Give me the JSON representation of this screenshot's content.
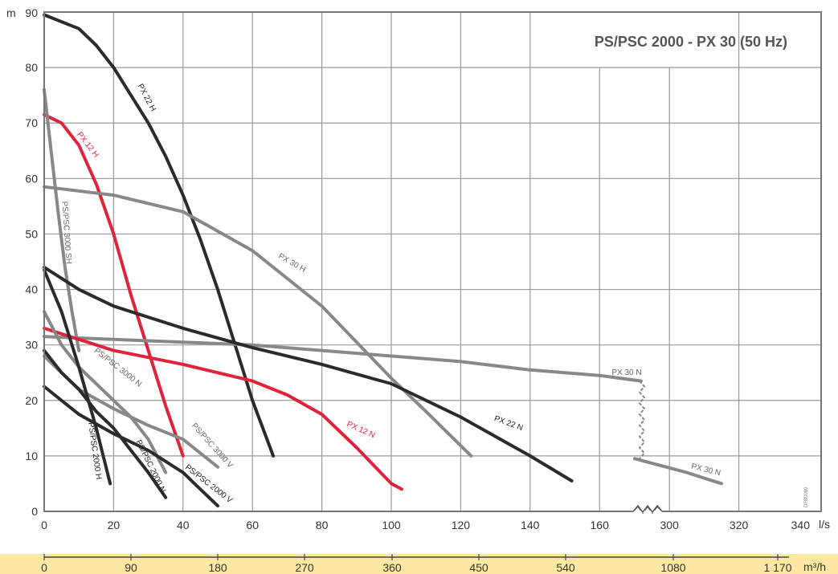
{
  "chart_data": {
    "type": "line",
    "title": "PS/PSC 2000 - PX 30 (50 Hz)",
    "ylabel": "m",
    "xlabel": "l/s",
    "secondary_xlabel": "m³/h",
    "ylim": [
      0,
      90
    ],
    "y_ticks": [
      "0",
      "10",
      "20",
      "30",
      "40",
      "50",
      "60",
      "70",
      "80",
      "90"
    ],
    "x_ticks": [
      "0",
      "20",
      "40",
      "60",
      "80",
      "100",
      "120",
      "140",
      "160",
      "300",
      "320",
      "340"
    ],
    "x_axis_break": "between 160 and 300 l/s",
    "secondary_ticks": [
      "0",
      "90",
      "180",
      "270",
      "360",
      "450",
      "540",
      "1080",
      "1 170"
    ],
    "watermark": "DFB0080",
    "colors": {
      "black": "#2b2b2b",
      "red": "#e0223a",
      "gray": "#888888",
      "grid": "#9a9a9a",
      "band": "#fde8a3"
    },
    "series": [
      {
        "name": "PX 22 H",
        "color": "black",
        "x": [
          0,
          10,
          15,
          20,
          25,
          30,
          35,
          40,
          45,
          50,
          55,
          60,
          66
        ],
        "y": [
          89.5,
          87,
          84,
          80,
          75,
          70,
          64,
          57,
          49,
          40,
          30,
          20,
          10
        ]
      },
      {
        "name": "PX 12 H",
        "color": "red",
        "x": [
          0,
          5,
          10,
          15,
          20,
          25,
          30,
          35,
          40
        ],
        "y": [
          71.5,
          70,
          66,
          59,
          50,
          39,
          29,
          19,
          10
        ]
      },
      {
        "name": "PS/PSC 3000 SH",
        "color": "gray",
        "x": [
          0,
          2,
          4,
          6,
          8,
          10
        ],
        "y": [
          76,
          65,
          54,
          44,
          36,
          29
        ]
      },
      {
        "name": "PX 30 H",
        "color": "gray",
        "x": [
          0,
          20,
          40,
          60,
          80,
          100,
          110,
          123
        ],
        "y": [
          58.5,
          57,
          54,
          47,
          37,
          24,
          18,
          10
        ]
      },
      {
        "name": "PX 30 N",
        "color": "gray",
        "x": [
          0,
          20,
          40,
          60,
          80,
          100,
          120,
          140,
          160,
          172
        ],
        "y": [
          31.5,
          31,
          30.5,
          30,
          29,
          28,
          27,
          25.5,
          24.5,
          23.5
        ]
      },
      {
        "name": "PX 30 N",
        "color": "gray",
        "x": [
          290,
          305,
          315
        ],
        "y": [
          9.5,
          7,
          5
        ]
      },
      {
        "name": "PX 22 N",
        "color": "black",
        "x": [
          0,
          10,
          20,
          40,
          60,
          80,
          100,
          120,
          140,
          152
        ],
        "y": [
          44,
          40,
          37,
          33,
          29.5,
          26.5,
          23,
          17,
          10,
          5.5
        ]
      },
      {
        "name": "PX 12 N",
        "color": "red",
        "x": [
          0,
          10,
          20,
          40,
          60,
          70,
          80,
          90,
          100,
          103
        ],
        "y": [
          33,
          31,
          29,
          26.5,
          23.5,
          21,
          17.5,
          11.5,
          5,
          4
        ]
      },
      {
        "name": "PS/PSC 3000 N",
        "color": "gray",
        "x": [
          0,
          5,
          10,
          15,
          20,
          25,
          30,
          35
        ],
        "y": [
          36,
          30,
          26,
          23,
          20,
          17,
          13,
          7
        ]
      },
      {
        "name": "PS/PSC 3000 V",
        "color": "gray",
        "x": [
          0,
          10,
          20,
          30,
          40,
          50
        ],
        "y": [
          28,
          22,
          18.5,
          15.5,
          13,
          8
        ]
      },
      {
        "name": "PS/PSC 2000 H",
        "color": "black",
        "x": [
          0,
          5,
          10,
          15,
          19
        ],
        "y": [
          43.5,
          36,
          26,
          15,
          5
        ]
      },
      {
        "name": "PS/PSC 2000 N",
        "color": "black",
        "x": [
          0,
          5,
          10,
          15,
          20,
          25,
          30,
          35
        ],
        "y": [
          29,
          25,
          22,
          18,
          15,
          11,
          7,
          2.5
        ]
      },
      {
        "name": "PS/PSC 2000 V",
        "color": "black",
        "x": [
          0,
          10,
          20,
          30,
          40,
          45,
          50
        ],
        "y": [
          22.5,
          17.5,
          14,
          11,
          7,
          4,
          1
        ]
      }
    ]
  }
}
